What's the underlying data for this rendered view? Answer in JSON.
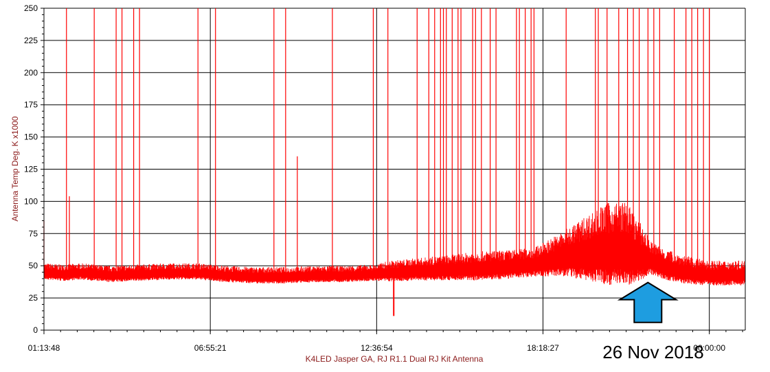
{
  "chart_data": {
    "type": "line",
    "xlabel": "K4LED Jasper GA, RJ R1.1 Dual RJ Kit Antenna",
    "ylabel": "Antenna Temp Deg. K x1000",
    "ylim": [
      0,
      250
    ],
    "ytick_values": [
      0,
      25,
      50,
      75,
      100,
      125,
      150,
      175,
      200,
      225,
      250
    ],
    "ytick_labels": [
      "0",
      "25",
      "50",
      "75",
      "100",
      "125",
      "150",
      "175",
      "200",
      "225",
      "250"
    ],
    "xlim_hours": [
      1.23,
      25.23
    ],
    "xtick_labels": [
      "01:13:48",
      "06:55:21",
      "12:36:54",
      "18:18:27",
      "00:00:00"
    ],
    "xtick_hours": [
      1.23,
      6.9225,
      12.615,
      18.3075,
      24.0
    ],
    "grid": true,
    "series": [
      {
        "color": "#ff0000",
        "baseline": {
          "x_hours": [
            1.23,
            1.9,
            2.5,
            3.5,
            4.5,
            5.5,
            6.5,
            7.0,
            7.5,
            8.5,
            9.5,
            10.5,
            11.5,
            12.5,
            13.2,
            14.0,
            15.0,
            16.0,
            17.0,
            18.0,
            19.0,
            20.0,
            21.0,
            22.0,
            22.5,
            23.0,
            23.5,
            24.0
          ],
          "y": [
            44,
            43,
            44,
            42,
            43,
            44,
            44,
            43,
            42,
            41,
            41,
            42,
            42,
            43,
            44,
            45,
            46,
            47,
            48,
            50,
            55,
            58,
            60,
            53,
            48,
            45,
            43,
            42
          ]
        },
        "noise_amplitude": {
          "x_hours": [
            1.23,
            12.6,
            13.0,
            15.0,
            16.0,
            18.0,
            19.0,
            20.5,
            21.2,
            21.7,
            22.0,
            24.0
          ],
          "y": [
            8,
            8,
            10,
            12,
            14,
            14,
            22,
            40,
            40,
            26,
            16,
            12
          ]
        },
        "spikes": {
          "x_hours": [
            1.23,
            2.0,
            2.1,
            2.95,
            3.7,
            3.9,
            4.3,
            4.5,
            6.5,
            7.1,
            9.1,
            9.5,
            9.9,
            11.1,
            12.5,
            13.0,
            14.0,
            14.4,
            14.6,
            14.8,
            14.9,
            15.0,
            15.2,
            15.4,
            15.5,
            15.9,
            16.0,
            16.2,
            16.5,
            16.7,
            17.4,
            17.5,
            17.7,
            17.9,
            18.0,
            19.1,
            20.1,
            20.2,
            20.5,
            20.9,
            21.2,
            21.4,
            21.6,
            21.9,
            22.1,
            22.3,
            22.8,
            23.2,
            23.4,
            23.6,
            23.8,
            24.0
          ],
          "y": [
            85,
            250,
            104,
            250,
            250,
            250,
            250,
            250,
            250,
            250,
            250,
            250,
            135,
            250,
            250,
            250,
            250,
            250,
            250,
            250,
            250,
            250,
            250,
            250,
            250,
            250,
            250,
            250,
            250,
            250,
            250,
            250,
            250,
            250,
            250,
            250,
            250,
            250,
            250,
            250,
            250,
            250,
            250,
            250,
            250,
            250,
            250,
            250,
            250,
            250,
            250,
            250
          ]
        },
        "dropouts": {
          "x_hours": [
            13.2
          ],
          "y": [
            11
          ]
        }
      }
    ]
  },
  "annotation": {
    "text": "26 Nov 2018",
    "arrow_color": "#1e9de0",
    "arrow_outline": "#000000",
    "arrow_x_hours": 21.9,
    "arrow_y_tip": 37,
    "arrow_y_base": 6
  },
  "colors": {
    "grid": "#000000",
    "axis_label": "#8b1a1a",
    "series": "#ff0000"
  }
}
